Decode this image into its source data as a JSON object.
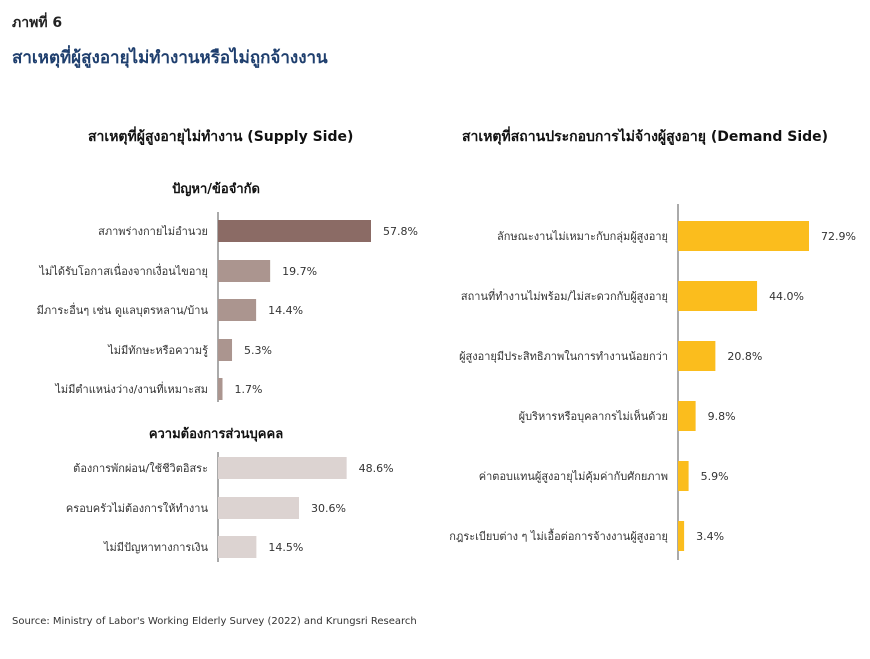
{
  "figure_label": "ภาพที่ 6",
  "figure_title": "สาเหตุที่ผู้สูงอายุไม่ทำงานหรือไม่ถูกจ้างงาน",
  "source": "Source: Ministry of Labor's Working Elderly Survey (2022) and Krungsri Research",
  "chart_data": [
    {
      "type": "bar",
      "orientation": "horizontal",
      "title": "สาเหตุที่ผู้สูงอายุไม่ทำงาน (Supply Side)",
      "groups": [
        {
          "label": "ปัญหา/ข้อจำกัด",
          "categories": [
            "สภาพร่างกายไม่อำนวย",
            "ไม่ได้รับโอกาสเนื่องจากเงื่อนไขอายุ",
            "มีภาระอื่นๆ เช่น ดูแลบุตรหลาน/บ้าน",
            "ไม่มีทักษะหรือความรู้",
            "ไม่มีตำแหน่งว่าง/งานที่เหมาะสม"
          ],
          "values": [
            57.8,
            19.7,
            14.4,
            5.3,
            1.7
          ],
          "value_labels": [
            "57.8%",
            "19.7%",
            "14.4%",
            "5.3%",
            "1.7%"
          ],
          "colors": [
            "#8b6b65",
            "#ab958f",
            "#ab958f",
            "#ab958f",
            "#ab958f"
          ]
        },
        {
          "label": "ความต้องการส่วนบุคคล",
          "categories": [
            "ต้องการพักผ่อน/ใช้ชีวิตอิสระ",
            "ครอบครัวไม่ต้องการให้ทำงาน",
            "ไม่มีปัญหาทางการเงิน"
          ],
          "values": [
            48.6,
            30.6,
            14.5
          ],
          "value_labels": [
            "48.6%",
            "30.6%",
            "14.5%"
          ],
          "colors": [
            "#dcd3d1",
            "#dcd3d1",
            "#dcd3d1"
          ]
        }
      ]
    },
    {
      "type": "bar",
      "orientation": "horizontal",
      "title": "สาเหตุที่สถานประกอบการไม่จ้างผู้สูงอายุ (Demand Side)",
      "categories": [
        "ลักษณะงานไม่เหมาะกับกลุ่มผู้สูงอายุ",
        "สถานที่ทำงานไม่พร้อม/ไม่สะดวกกับผู้สูงอายุ",
        "ผู้สูงอายุมีประสิทธิภาพในการทำงานน้อยกว่า",
        "ผู้บริหารหรือบุคลากรไม่เห็นด้วย",
        "ค่าตอบแทนผู้สูงอายุไม่คุ้มค่ากับศักยภาพ",
        "กฎระเบียบต่าง ๆ ไม่เอื้อต่อการจ้างงานผู้สูงอายุ"
      ],
      "values": [
        72.9,
        44.0,
        20.8,
        9.8,
        5.9,
        3.4
      ],
      "value_labels": [
        "72.9%",
        "44.0%",
        "20.8%",
        "9.8%",
        "5.9%",
        "3.4%"
      ],
      "color": "#fbbd1d"
    }
  ]
}
